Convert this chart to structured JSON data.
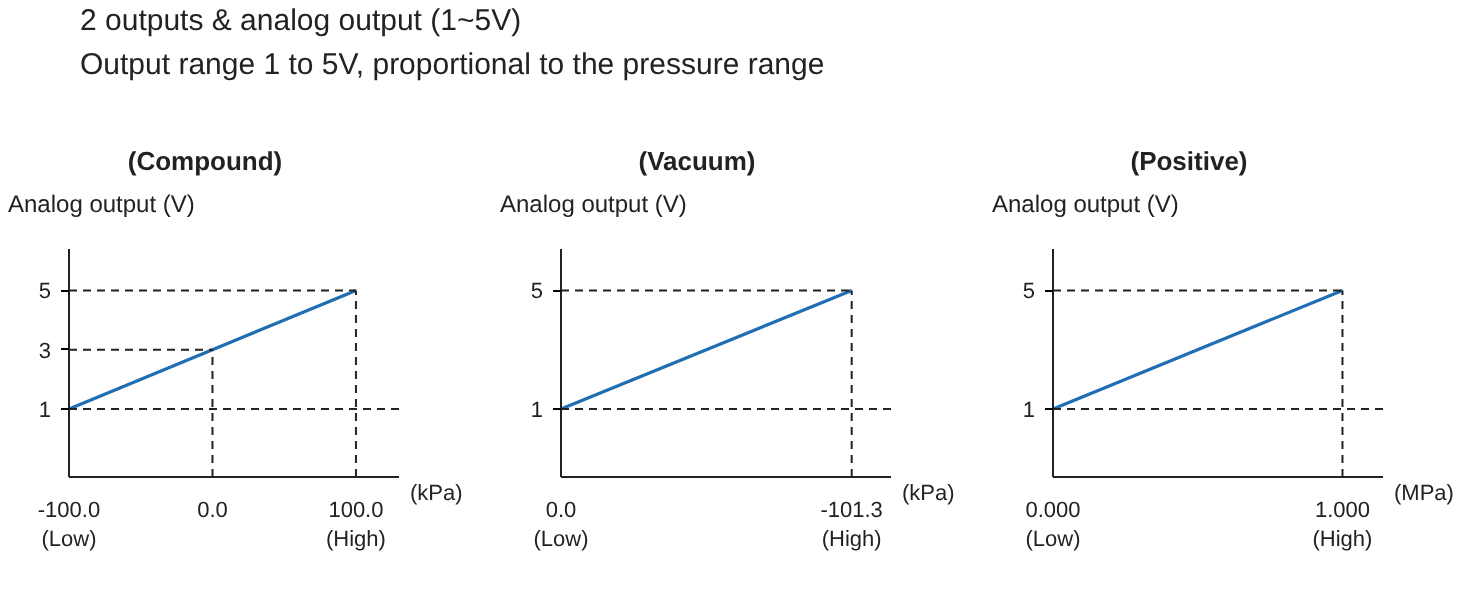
{
  "chart_data": [
    {
      "type": "line",
      "title": "(Compound)",
      "ylabel": "Analog output (V)",
      "xlabel": "(kPa)",
      "annotations": [
        "2 outputs & analog output (1~5V)",
        "Output range 1 to 5V, proportional to the pressure range"
      ],
      "x": [
        -100,
        100
      ],
      "series": [
        {
          "color": "#1f6db3",
          "values": [
            1,
            5
          ]
        }
      ],
      "xlim": [
        -100,
        130
      ],
      "ylim": [
        -1.3,
        6.4
      ],
      "xticks": [
        {
          "value": -100,
          "label": "-100.0\n(Low)"
        },
        {
          "value": 0,
          "label": "0.0"
        },
        {
          "value": 100,
          "label": "100.0\n(High)"
        }
      ],
      "yticks": [
        1,
        3,
        5
      ],
      "ref_lines": [
        {
          "axis": "y",
          "value": 1,
          "line_style": "dashed"
        },
        {
          "axis": "y",
          "value": 3,
          "line_style": "dashed"
        },
        {
          "axis": "y",
          "value": 5,
          "line_style": "dashed"
        },
        {
          "axis": "x",
          "value": 0,
          "line_style": "dashed"
        },
        {
          "axis": "x",
          "value": 100,
          "line_style": "dashed"
        }
      ],
      "line_style": "solid"
    },
    {
      "type": "line",
      "title": "(Vacuum)",
      "ylabel": "Analog output (V)",
      "xlabel": "(kPa)",
      "x": [
        0,
        -101.3
      ],
      "series": [
        {
          "color": "#1f6db3",
          "values": [
            1,
            5
          ]
        }
      ],
      "xlim": [
        0,
        -115
      ],
      "ylim": [
        -1.3,
        6.4
      ],
      "xticks": [
        {
          "value": 0,
          "label": "0.0\n(Low)"
        },
        {
          "value": -101.3,
          "label": "-101.3\n(High)"
        }
      ],
      "yticks": [
        1,
        5
      ],
      "ref_lines": [
        {
          "axis": "y",
          "value": 1,
          "line_style": "dashed"
        },
        {
          "axis": "y",
          "value": 5,
          "line_style": "dashed"
        },
        {
          "axis": "x",
          "value": -101.3,
          "line_style": "dashed"
        }
      ],
      "line_style": "solid"
    },
    {
      "type": "line",
      "title": "(Positive)",
      "ylabel": "Analog output (V)",
      "xlabel": "(MPa)",
      "x": [
        0,
        1
      ],
      "series": [
        {
          "color": "#1f6db3",
          "values": [
            1,
            5
          ]
        }
      ],
      "xlim": [
        0,
        1.14
      ],
      "ylim": [
        -1.3,
        6.4
      ],
      "xticks": [
        {
          "value": 0,
          "label": "0.000\n(Low)"
        },
        {
          "value": 1,
          "label": "1.000\n(High)"
        }
      ],
      "yticks": [
        1,
        5
      ],
      "ref_lines": [
        {
          "axis": "y",
          "value": 1,
          "line_style": "dashed"
        },
        {
          "axis": "y",
          "value": 5,
          "line_style": "dashed"
        },
        {
          "axis": "x",
          "value": 1,
          "line_style": "dashed"
        }
      ],
      "line_style": "solid"
    }
  ]
}
